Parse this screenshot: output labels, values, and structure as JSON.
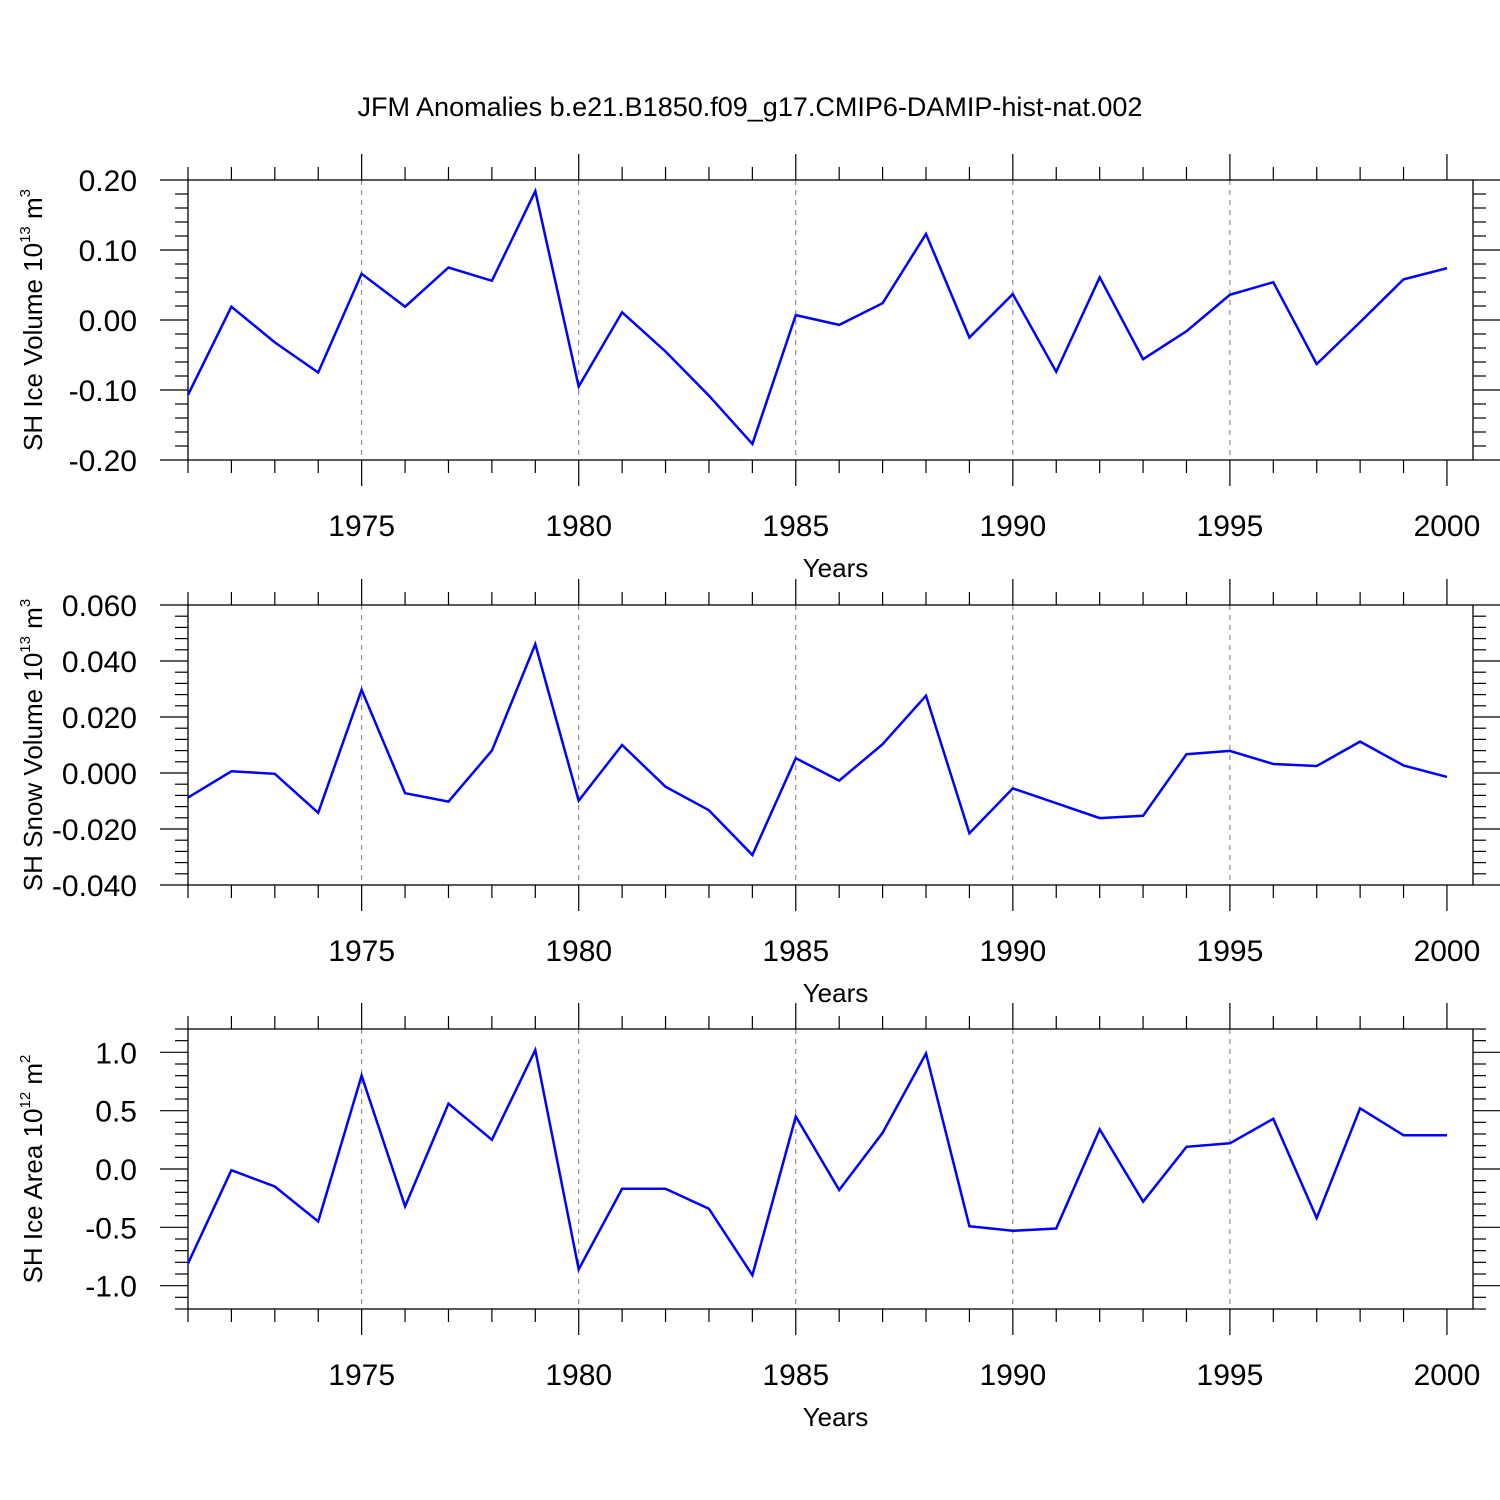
{
  "title": "JFM Anomalies b.e21.B1850.f09_g17.CMIP6-DAMIP-hist-nat.002",
  "colors": {
    "series": "#0000ff",
    "axis": "#000000",
    "grid": "#777777",
    "background": "#ffffff"
  },
  "chart_data": [
    {
      "type": "line",
      "name": "sh-ice-volume",
      "ylabel": {
        "main": "SH Ice Volume 10",
        "sup": "13",
        "unit": " m",
        "unit_sup": "3"
      },
      "xlabel": "Years",
      "xlim": [
        1971,
        2000
      ],
      "ylim": [
        -0.2,
        0.2
      ],
      "xticks": [
        "1975",
        "1980",
        "1985",
        "1990",
        "1995",
        "2000"
      ],
      "yticks": [
        "0.20",
        "0.10",
        "0.00",
        "-0.10",
        "-0.20"
      ],
      "ytick_values": [
        0.2,
        0.1,
        0.0,
        -0.1,
        -0.2
      ],
      "grid_x": [
        1975,
        1980,
        1985,
        1990,
        1995
      ],
      "x": [
        1971,
        1972,
        1973,
        1974,
        1975,
        1976,
        1977,
        1978,
        1979,
        1980,
        1981,
        1982,
        1983,
        1984,
        1985,
        1986,
        1987,
        1988,
        1989,
        1990,
        1991,
        1992,
        1993,
        1994,
        1995,
        1996,
        1997,
        1998,
        1999,
        2000
      ],
      "values": [
        -0.107,
        0.019,
        -0.032,
        -0.075,
        0.066,
        0.019,
        0.075,
        0.056,
        0.184,
        -0.095,
        0.011,
        -0.045,
        -0.108,
        -0.177,
        0.007,
        -0.007,
        0.024,
        0.123,
        -0.025,
        0.037,
        -0.074,
        0.061,
        -0.056,
        -0.016,
        0.036,
        0.054,
        -0.063,
        -0.003,
        0.058,
        0.074
      ]
    },
    {
      "type": "line",
      "name": "sh-snow-volume",
      "ylabel": {
        "main": "SH Snow Volume 10",
        "sup": "13",
        "unit": " m",
        "unit_sup": "3"
      },
      "xlabel": "Years",
      "xlim": [
        1971,
        2000
      ],
      "ylim": [
        -0.04,
        0.06
      ],
      "xticks": [
        "1975",
        "1980",
        "1985",
        "1990",
        "1995",
        "2000"
      ],
      "yticks": [
        "0.060",
        "0.040",
        "0.020",
        "0.000",
        "-0.020",
        "-0.040"
      ],
      "ytick_values": [
        0.06,
        0.04,
        0.02,
        0.0,
        -0.02,
        -0.04
      ],
      "grid_x": [
        1975,
        1980,
        1985,
        1990,
        1995
      ],
      "x": [
        1971,
        1972,
        1973,
        1974,
        1975,
        1976,
        1977,
        1978,
        1979,
        1980,
        1981,
        1982,
        1983,
        1984,
        1985,
        1986,
        1987,
        1988,
        1989,
        1990,
        1991,
        1992,
        1993,
        1994,
        1995,
        1996,
        1997,
        1998,
        1999,
        2000
      ],
      "values": [
        -0.0088,
        0.0006,
        -0.0003,
        -0.0142,
        0.0297,
        -0.0072,
        -0.0102,
        0.008,
        0.046,
        -0.0099,
        0.01,
        -0.0049,
        -0.0133,
        -0.0293,
        0.0053,
        -0.0027,
        0.0103,
        0.0276,
        -0.0215,
        -0.0055,
        -0.0108,
        -0.0161,
        -0.0153,
        0.0067,
        0.0079,
        0.0032,
        0.0025,
        0.0112,
        0.0027,
        -0.0014
      ]
    },
    {
      "type": "line",
      "name": "sh-ice-area",
      "ylabel": {
        "main": "SH Ice Area 10",
        "sup": "12",
        "unit": " m",
        "unit_sup": "2"
      },
      "xlabel": "Years",
      "xlim": [
        1971,
        2000
      ],
      "ylim": [
        -1.2,
        1.2
      ],
      "xticks": [
        "1975",
        "1980",
        "1985",
        "1990",
        "1995",
        "2000"
      ],
      "yticks": [
        "1.0",
        "0.5",
        "0.0",
        "-0.5",
        "-1.0"
      ],
      "ytick_values": [
        1.0,
        0.5,
        0.0,
        -0.5,
        -1.0
      ],
      "grid_x": [
        1975,
        1980,
        1985,
        1990,
        1995
      ],
      "x": [
        1971,
        1972,
        1973,
        1974,
        1975,
        1976,
        1977,
        1978,
        1979,
        1980,
        1981,
        1982,
        1983,
        1984,
        1985,
        1986,
        1987,
        1988,
        1989,
        1990,
        1991,
        1992,
        1993,
        1994,
        1995,
        1996,
        1997,
        1998,
        1999,
        2000
      ],
      "values": [
        -0.81,
        -0.01,
        -0.15,
        -0.45,
        0.8,
        -0.32,
        0.56,
        0.25,
        1.02,
        -0.86,
        -0.17,
        -0.17,
        -0.34,
        -0.91,
        0.45,
        -0.18,
        0.31,
        0.99,
        -0.49,
        -0.53,
        -0.51,
        0.34,
        -0.28,
        0.19,
        0.22,
        0.43,
        -0.42,
        0.52,
        0.29,
        0.29
      ]
    }
  ]
}
